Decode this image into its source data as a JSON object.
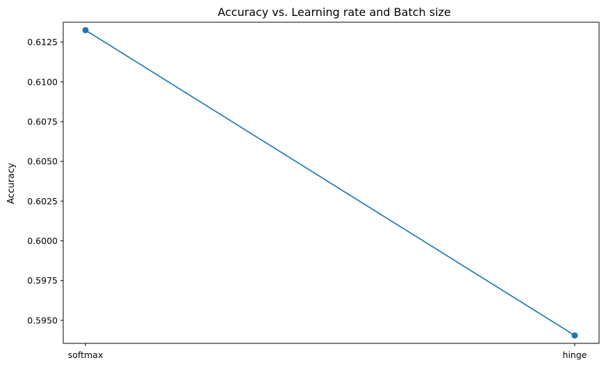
{
  "chart_data": {
    "type": "line",
    "title": "Accuracy vs. Learning rate and Batch size",
    "xlabel": "",
    "ylabel": "Accuracy",
    "categories": [
      "softmax",
      "hinge"
    ],
    "series": [
      {
        "values": [
          0.61325,
          0.59405
        ],
        "color": "#1f77b4",
        "marker": "circle"
      }
    ],
    "ylim": [
      0.59355,
      0.61375
    ],
    "yticks": [
      0.595,
      0.5975,
      0.6,
      0.6025,
      0.605,
      0.6075,
      0.61,
      0.6125
    ],
    "ytick_labels": [
      "0.5950",
      "0.5975",
      "0.6000",
      "0.6025",
      "0.6050",
      "0.6075",
      "0.6100",
      "0.6125"
    ],
    "grid": false,
    "legend": "none"
  }
}
